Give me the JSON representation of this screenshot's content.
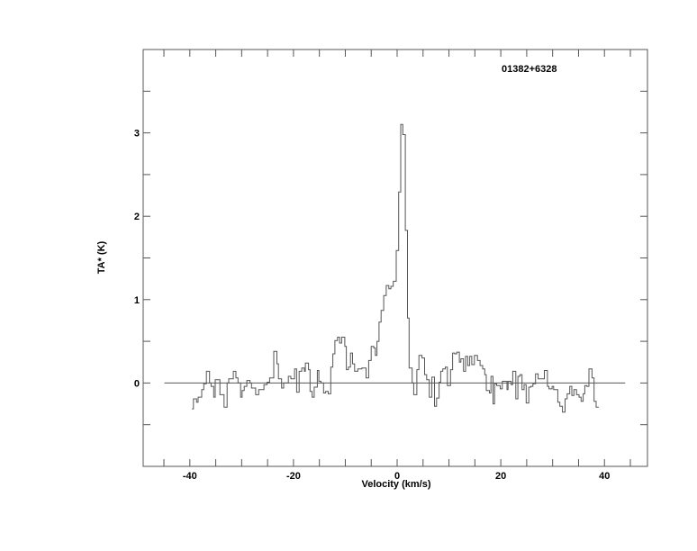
{
  "chart_data": {
    "type": "line",
    "style": "step",
    "title": "01382+6328",
    "xlabel": "Velocity (km/s)",
    "ylabel": "TA* (K)",
    "xlim": [
      -49,
      48.3
    ],
    "ylim": [
      -1,
      4
    ],
    "xticks_major": [
      -40,
      -20,
      0,
      20,
      40
    ],
    "xtick_minor_step": 5,
    "yticks_major": [
      0,
      1,
      2,
      3
    ],
    "ytick_minor_step": 0.5,
    "grid": false,
    "baseline": {
      "y": 0,
      "x_from": -44.9,
      "x_to": 44.0
    },
    "color": "#555555",
    "series": [
      {
        "velocity": [
          -39.6,
          -39.3,
          -38.7,
          -38.4,
          -37.7,
          -37.3,
          -36.8,
          -36.2,
          -35.9,
          -35.4,
          -35.1,
          -34.2,
          -33.4,
          -32.8,
          -32.5,
          -31.6,
          -31.1,
          -30.7,
          -30.2,
          -29.9,
          -29.5,
          -29.0,
          -28.4,
          -28.1,
          -27.3,
          -26.7,
          -25.7,
          -25.1,
          -24.6,
          -23.8,
          -23.2,
          -22.9,
          -22.3,
          -21.9,
          -21.0,
          -20.5,
          -19.8,
          -19.4,
          -18.9,
          -18.4,
          -17.9,
          -17.7,
          -17.1,
          -16.8,
          -16.4,
          -16.0,
          -15.4,
          -15.1,
          -14.7,
          -14.2,
          -13.8,
          -13.3,
          -12.8,
          -12.4,
          -12.0,
          -11.5,
          -11.1,
          -10.7,
          -10.1,
          -9.8,
          -9.4,
          -9.0,
          -8.6,
          -8.2,
          -7.6,
          -6.8,
          -6.0,
          -5.5,
          -5.0,
          -4.5,
          -4.2,
          -3.9,
          -3.5,
          -3.1,
          -2.6,
          -2.1,
          -1.6,
          -1.2,
          -0.75,
          -0.17,
          0.29,
          0.7,
          1.1,
          1.57,
          2.0,
          2.3,
          2.9,
          3.2,
          3.8,
          4.2,
          4.8,
          5.3,
          5.7,
          6.2,
          6.7,
          7.2,
          7.6,
          8.1,
          8.4,
          8.8,
          9.3,
          9.7,
          10.3,
          10.7,
          11.1,
          11.5,
          12.0,
          12.3,
          12.8,
          13.2,
          13.6,
          14.0,
          14.4,
          14.9,
          15.5,
          16.0,
          16.5,
          16.9,
          17.2,
          17.8,
          18.1,
          18.5,
          18.8,
          19.2,
          19.9,
          20.3,
          21.2,
          21.4,
          22.0,
          22.3,
          22.9,
          23.3,
          23.7,
          24.1,
          24.5,
          24.9,
          25.4,
          25.8,
          26.2,
          26.7,
          27.2,
          27.7,
          28.4,
          29.0,
          29.3,
          29.9,
          30.2,
          30.6,
          31.0,
          31.4,
          31.9,
          32.4,
          32.8,
          33.3,
          33.7,
          34.1,
          34.6,
          35.1,
          35.5,
          35.9,
          36.2,
          36.6,
          37.0,
          37.6,
          38.0,
          38.4
        ],
        "last_edge": 38.9,
        "ta": [
          -0.31,
          -0.19,
          -0.23,
          -0.17,
          -0.08,
          -0.01,
          0.14,
          0.0,
          -0.04,
          -0.17,
          0.04,
          -0.14,
          -0.29,
          0.0,
          0.05,
          0.14,
          0.06,
          0.0,
          -0.17,
          -0.09,
          -0.04,
          0.03,
          0.0,
          -0.06,
          -0.14,
          -0.08,
          -0.02,
          0.01,
          0.06,
          0.38,
          0.23,
          0.05,
          -0.06,
          0.0,
          0.08,
          0.05,
          0.17,
          -0.11,
          0.14,
          0.18,
          0.14,
          0.24,
          0.16,
          -0.1,
          -0.17,
          -0.05,
          0.15,
          0.02,
          0.0,
          -0.12,
          -0.1,
          -0.13,
          0.19,
          0.35,
          0.51,
          0.55,
          0.48,
          0.55,
          0.44,
          0.16,
          0.19,
          0.36,
          0.23,
          0.14,
          0.17,
          0.18,
          0.06,
          0.27,
          0.44,
          0.42,
          0.33,
          0.5,
          0.73,
          0.87,
          1.05,
          1.17,
          1.13,
          1.16,
          1.22,
          1.59,
          2.29,
          3.1,
          2.98,
          1.83,
          0.78,
          0.18,
          0.0,
          -0.14,
          0.16,
          0.33,
          0.3,
          0.1,
          0.04,
          -0.17,
          0.07,
          -0.28,
          -0.18,
          0.01,
          0.14,
          0.17,
          0.19,
          -0.03,
          0.16,
          0.36,
          0.35,
          0.37,
          0.25,
          0.29,
          0.14,
          0.32,
          0.21,
          0.32,
          0.22,
          0.33,
          0.27,
          0.21,
          0.17,
          0.1,
          -0.09,
          -0.12,
          0.08,
          -0.25,
          -0.01,
          -0.03,
          -0.07,
          0.02,
          -0.08,
          0.02,
          -0.02,
          0.14,
          -0.19,
          0.08,
          0.1,
          -0.08,
          -0.02,
          -0.24,
          -0.05,
          -0.04,
          -0.01,
          0.11,
          0.05,
          0.05,
          0.15,
          -0.04,
          -0.07,
          -0.04,
          -0.08,
          -0.08,
          -0.23,
          -0.28,
          -0.35,
          -0.19,
          -0.13,
          -0.04,
          -0.15,
          -0.08,
          -0.14,
          -0.17,
          -0.22,
          -0.13,
          -0.03,
          -0.04,
          0.17,
          0.06,
          -0.22,
          -0.29
        ]
      }
    ]
  }
}
